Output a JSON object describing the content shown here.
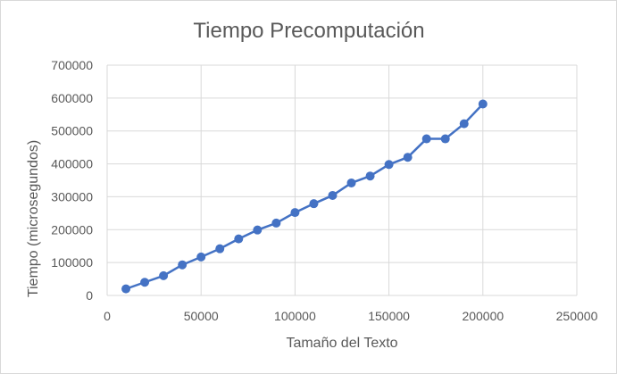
{
  "chart_data": {
    "type": "scatter",
    "title": "Tiempo Precomputación",
    "xlabel": "Tamaño del Texto",
    "ylabel": "Tiempo (microsegundos)",
    "xlim": [
      0,
      250000
    ],
    "ylim": [
      0,
      700000
    ],
    "x_ticks": [
      0,
      50000,
      100000,
      150000,
      200000,
      250000
    ],
    "y_ticks": [
      0,
      100000,
      200000,
      300000,
      400000,
      500000,
      600000,
      700000
    ],
    "grid": true,
    "legend": "none",
    "series_color": "#4472c4",
    "grid_color": "#d9d9d9",
    "series": [
      {
        "x": [
          10000,
          20000,
          30000,
          40000,
          50000,
          60000,
          70000,
          80000,
          90000,
          100000,
          110000,
          120000,
          130000,
          140000,
          150000,
          160000,
          170000,
          180000,
          190000,
          200000
        ],
        "y": [
          20000,
          40000,
          60000,
          93000,
          117000,
          142000,
          172000,
          199000,
          220000,
          252000,
          279000,
          304000,
          342000,
          363000,
          398000,
          420000,
          476000,
          476000,
          522000,
          582000
        ]
      }
    ]
  }
}
